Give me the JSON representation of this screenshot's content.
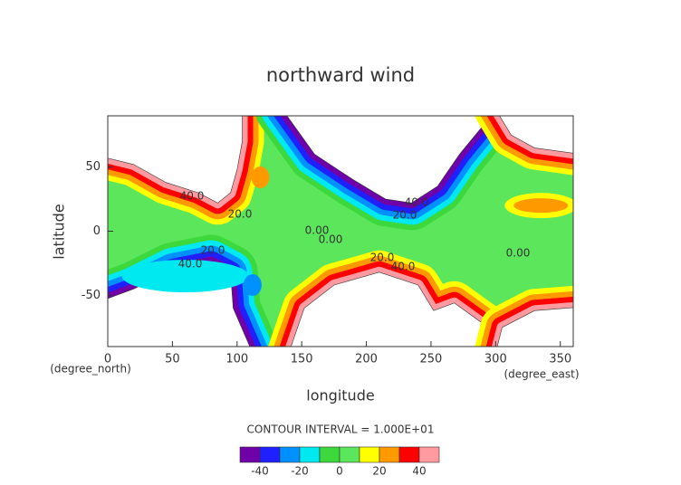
{
  "chart_data": {
    "type": "contour",
    "title": "northward wind",
    "xlabel": "longitude",
    "ylabel": "latitude",
    "xunits": "(degree_east)",
    "yunits": "(degree_north)",
    "xlim": [
      0,
      360
    ],
    "ylim": [
      -90,
      90
    ],
    "xticks": [
      0,
      50,
      100,
      150,
      200,
      250,
      300,
      350
    ],
    "yticks": [
      -50,
      0,
      50
    ],
    "contour_interval": "CONTOUR INTERVAL = 1.000E+01",
    "levels": [
      -50,
      -40,
      -30,
      -20,
      -10,
      0,
      10,
      20,
      30,
      40,
      50
    ],
    "colors": [
      "#7000a8",
      "#2020ff",
      "#0090ff",
      "#00e8f0",
      "#3cd83c",
      "#5ce65c",
      "#ffff00",
      "#ff9900",
      "#ff0000",
      "#ff9aa0"
    ],
    "colorbar_ticks": [
      -40,
      -20,
      0,
      20,
      40
    ],
    "contour_labels": [
      "40.0",
      "20.0",
      "0.00",
      "0.00",
      "40.0",
      "20.0",
      "20.0",
      "40.0",
      "20.0",
      "40.0",
      "0.00"
    ]
  }
}
